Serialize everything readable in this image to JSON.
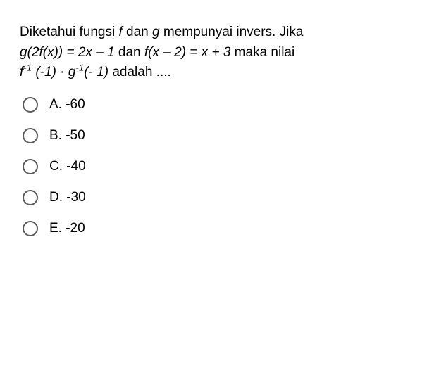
{
  "question": {
    "line1_pre": "Diketahui fungsi ",
    "line1_f": "f",
    "line1_mid1": " dan ",
    "line1_g": "g",
    "line1_post": " mempunyai invers. Jika",
    "line2_expr1": "g(2f(x)) = 2x – 1",
    "line2_mid": " dan ",
    "line2_expr2": "f(x – 2) = x + 3",
    "line2_post": " maka nilai",
    "line3_finv": "f",
    "line3_sup1": "-1",
    "line3_arg1": " (-1)",
    "line3_dot": " · ",
    "line3_ginv": "g",
    "line3_sup2": "-1",
    "line3_arg2": "(- 1)",
    "line3_post": " adalah ...."
  },
  "options": {
    "a": "A. -60",
    "b": "B. -50",
    "c": "C. -40",
    "d": "D. -30",
    "e": "E. -20"
  }
}
